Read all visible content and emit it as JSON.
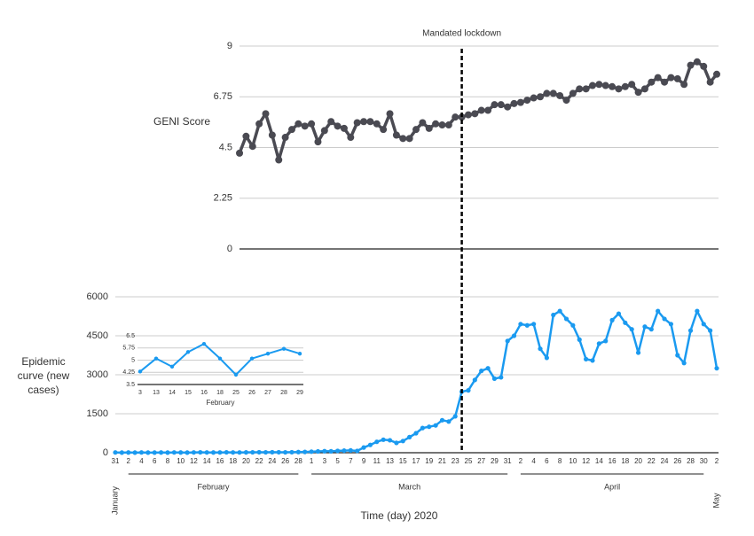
{
  "chart_data": [
    {
      "type": "line",
      "ylabel": "GENI Score",
      "color": "#4a4a52",
      "ylim": [
        0,
        9
      ],
      "yticks": [
        0,
        2.25,
        4.5,
        6.75,
        9
      ],
      "vline": {
        "label": "Mandated lockdown",
        "at": 53
      },
      "values": [
        null,
        null,
        null,
        null,
        null,
        null,
        null,
        null,
        null,
        null,
        null,
        null,
        null,
        null,
        null,
        null,
        null,
        null,
        null,
        4.25,
        5.0,
        4.55,
        5.55,
        6.0,
        5.05,
        3.95,
        4.95,
        5.3,
        5.55,
        5.45,
        5.55,
        4.75,
        5.25,
        5.65,
        5.45,
        5.35,
        4.95,
        5.6,
        5.65,
        5.65,
        5.55,
        5.3,
        6.0,
        5.05,
        4.9,
        4.9,
        5.3,
        5.6,
        5.35,
        5.55,
        5.5,
        5.5,
        5.85,
        5.85,
        5.95,
        6.0,
        6.15,
        6.15,
        6.4,
        6.4,
        6.3,
        6.45,
        6.5,
        6.6,
        6.7,
        6.75,
        6.9,
        6.9,
        6.8,
        6.6,
        6.9,
        7.1,
        7.1,
        7.25,
        7.3,
        7.25,
        7.2,
        7.1,
        7.2,
        7.3,
        6.95,
        7.1,
        7.4,
        7.6,
        7.4,
        7.6,
        7.55,
        7.3,
        8.15,
        8.3,
        8.1,
        7.4,
        7.75
      ]
    },
    {
      "type": "line",
      "ylabel": "Epidemic curve (new cases)",
      "xlabel": "Time (day) 2020",
      "color": "#1a9af0",
      "ylim": [
        0,
        6000
      ],
      "yticks": [
        0,
        1500,
        3000,
        4500,
        6000
      ],
      "months": [
        "January",
        "February",
        "March",
        "April",
        "May"
      ],
      "categories": [
        "31",
        null,
        "2",
        null,
        "4",
        null,
        "6",
        null,
        "8",
        null,
        "10",
        null,
        "12",
        null,
        "14",
        null,
        "16",
        null,
        "18",
        null,
        "20",
        null,
        "22",
        null,
        "24",
        null,
        "26",
        null,
        "28",
        null,
        "1",
        null,
        "3",
        null,
        "5",
        null,
        "7",
        null,
        "9",
        null,
        "11",
        null,
        "13",
        null,
        "15",
        null,
        "17",
        null,
        "19",
        null,
        "21",
        null,
        "23",
        null,
        "25",
        null,
        "27",
        null,
        "29",
        null,
        "31",
        null,
        "2",
        null,
        "4",
        null,
        "6",
        null,
        "8",
        null,
        "10",
        null,
        "12",
        null,
        "14",
        null,
        "16",
        null,
        "18",
        null,
        "20",
        null,
        "22",
        null,
        "24",
        null,
        "26",
        null,
        "28",
        null,
        "30",
        null,
        "2"
      ],
      "values": [
        10,
        5,
        8,
        5,
        10,
        5,
        5,
        8,
        5,
        10,
        8,
        5,
        10,
        15,
        10,
        8,
        10,
        15,
        10,
        10,
        12,
        15,
        18,
        15,
        20,
        18,
        15,
        20,
        25,
        30,
        40,
        50,
        60,
        55,
        70,
        80,
        90,
        70,
        200,
        300,
        420,
        500,
        480,
        380,
        450,
        600,
        750,
        950,
        1000,
        1050,
        1250,
        1200,
        1400,
        2350,
        2400,
        2800,
        3150,
        3250,
        2850,
        2900,
        4300,
        4500,
        4950,
        4900,
        4950,
        4000,
        3650,
        5300,
        5450,
        5150,
        4900,
        4350,
        3600,
        3550,
        4200,
        4300,
        5100,
        5350,
        5000,
        4750,
        3850,
        4850,
        4750,
        5450,
        5150,
        4950,
        3750,
        3450,
        4700,
        5450,
        4950,
        4700,
        3250
      ]
    },
    {
      "type": "line",
      "xlabel": "February",
      "color": "#1a9af0",
      "ylim": [
        3.5,
        6.5
      ],
      "yticks": [
        3.5,
        4.25,
        5,
        5.75,
        6.5
      ],
      "categories": [
        "3",
        "13",
        "14",
        "15",
        "16",
        "18",
        "25",
        "26",
        "27",
        "28",
        "29"
      ],
      "values": [
        4.3,
        5.1,
        4.6,
        5.5,
        6.0,
        5.1,
        4.1,
        5.1,
        5.4,
        5.7,
        5.4
      ]
    }
  ]
}
